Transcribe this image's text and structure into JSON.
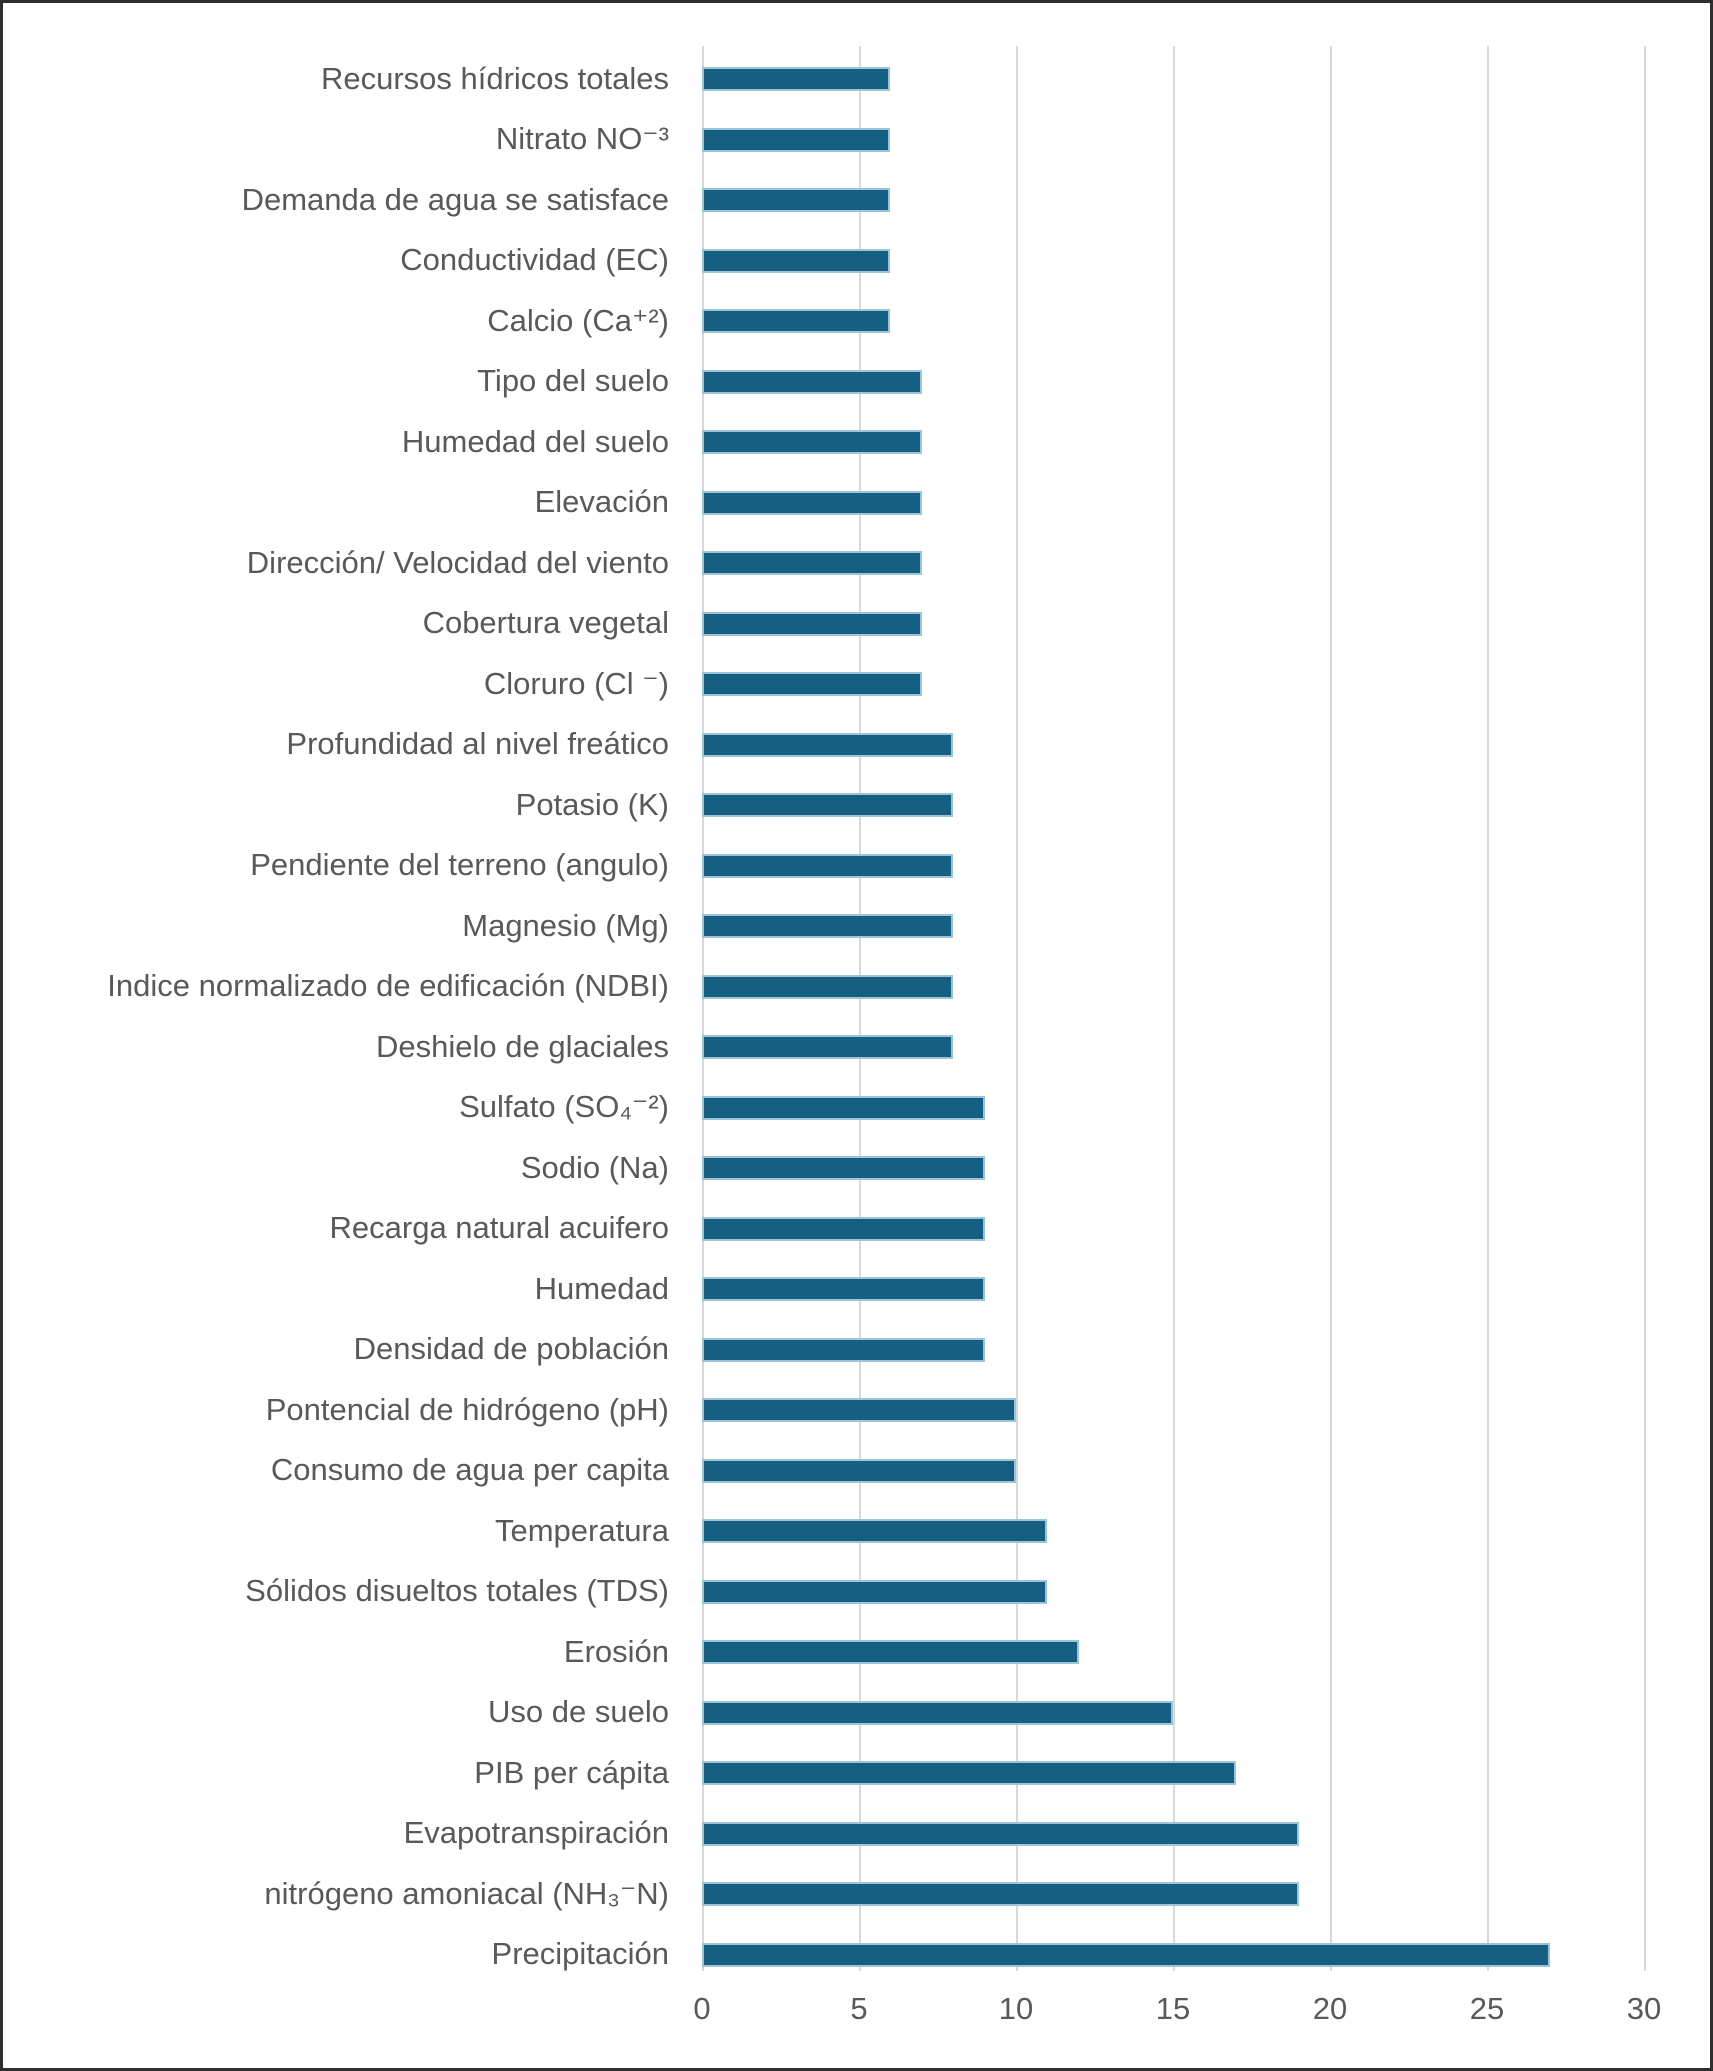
{
  "chart_data": {
    "type": "bar",
    "orientation": "horizontal",
    "title": "",
    "xlabel": "",
    "ylabel": "",
    "categories": [
      "Recursos hídricos totales",
      "Nitrato NO⁻³",
      "Demanda de agua se satisface",
      "Conductividad (EC)",
      "Calcio (Ca⁺²)",
      "Tipo del suelo",
      "Humedad del suelo",
      "Elevación",
      "Dirección/ Velocidad del viento",
      "Cobertura vegetal",
      "Cloruro (Cl ⁻)",
      "Profundidad al nivel freático",
      "Potasio (K)",
      "Pendiente del terreno (angulo)",
      "Magnesio (Mg)",
      "Indice normalizado de edificación (NDBI)",
      "Deshielo de glaciales",
      "Sulfato (SO₄⁻²)",
      "Sodio (Na)",
      "Recarga natural acuifero",
      "Humedad",
      "Densidad de población",
      "Pontencial de hidrógeno (pH)",
      "Consumo de agua per capita",
      "Temperatura",
      "Sólidos disueltos totales (TDS)",
      "Erosión",
      "Uso de suelo",
      "PIB per cápita",
      "Evapotranspiración",
      "nitrógeno amoniacal (NH₃⁻N)",
      "Precipitación"
    ],
    "values": [
      6,
      6,
      6,
      6,
      6,
      7,
      7,
      7,
      7,
      7,
      7,
      8,
      8,
      8,
      8,
      8,
      8,
      9,
      9,
      9,
      9,
      9,
      10,
      10,
      11,
      11,
      12,
      15,
      17,
      19,
      19,
      27
    ],
    "xlim": [
      0,
      30
    ],
    "xticks": [
      0,
      5,
      10,
      15,
      20,
      25,
      30
    ],
    "grid": true,
    "legend": false,
    "colors": {
      "bar_fill": "#156082",
      "bar_border": "#9dc3d6",
      "gridline": "#d9d9d9",
      "label_text": "#595959",
      "frame_border": "#2e2e2e",
      "background": "#ffffff"
    }
  }
}
